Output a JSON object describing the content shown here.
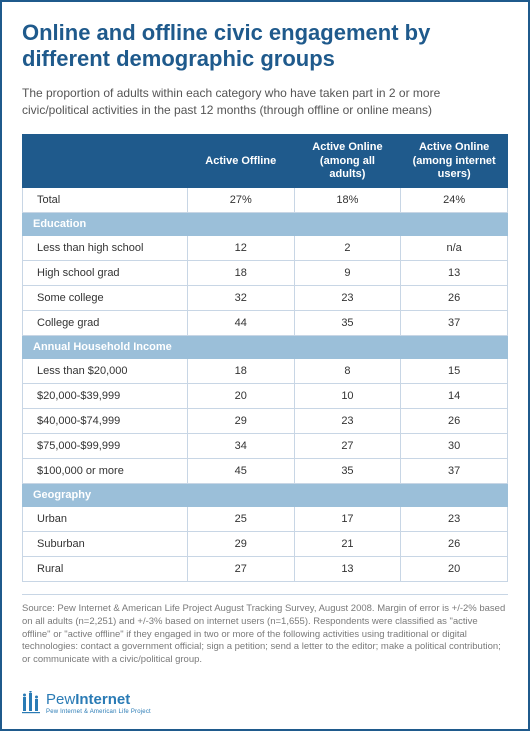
{
  "title": "Online and offline civic engagement by different demographic groups",
  "subtitle": "The proportion of adults within each category who have taken part in 2 or more civic/political activities in the past 12 months (through offline or online means)",
  "columns": [
    "",
    "Active Offline",
    "Active Online (among all adults)",
    "Active Online (among internet users)"
  ],
  "sections": [
    {
      "header": null,
      "rows": [
        {
          "label": "Total",
          "values": [
            "27%",
            "18%",
            "24%"
          ]
        }
      ]
    },
    {
      "header": "Education",
      "rows": [
        {
          "label": "Less than high school",
          "values": [
            "12",
            "2",
            "n/a"
          ]
        },
        {
          "label": "High school grad",
          "values": [
            "18",
            "9",
            "13"
          ]
        },
        {
          "label": "Some college",
          "values": [
            "32",
            "23",
            "26"
          ]
        },
        {
          "label": "College grad",
          "values": [
            "44",
            "35",
            "37"
          ]
        }
      ]
    },
    {
      "header": "Annual Household Income",
      "rows": [
        {
          "label": "Less than $20,000",
          "values": [
            "18",
            "8",
            "15"
          ]
        },
        {
          "label": "$20,000-$39,999",
          "values": [
            "20",
            "10",
            "14"
          ]
        },
        {
          "label": "$40,000-$74,999",
          "values": [
            "29",
            "23",
            "26"
          ]
        },
        {
          "label": "$75,000-$99,999",
          "values": [
            "34",
            "27",
            "30"
          ]
        },
        {
          "label": "$100,000 or more",
          "values": [
            "45",
            "35",
            "37"
          ]
        }
      ]
    },
    {
      "header": "Geography",
      "rows": [
        {
          "label": "Urban",
          "values": [
            "25",
            "17",
            "23"
          ]
        },
        {
          "label": "Suburban",
          "values": [
            "29",
            "21",
            "26"
          ]
        },
        {
          "label": "Rural",
          "values": [
            "27",
            "13",
            "20"
          ]
        }
      ]
    }
  ],
  "footnote": "Source: Pew Internet & American Life Project August Tracking Survey, August 2008. Margin of error is +/-2% based on all adults (n=2,251) and +/-3% based on internet users (n=1,655). Respondents were classified as \"active offline\" or \"active offline\" if they engaged in two or more of the following activities using traditional or digital technologies: contact a government official; sign a petition; send a letter to the editor; make a political contribution; or communicate with a civic/political group.",
  "logo": {
    "brand_prefix": "Pew",
    "brand_suffix": "Internet",
    "sub": "Pew Internet & American Life Project"
  },
  "colors": {
    "primary": "#1f5a8c",
    "section_bg": "#9bbfd9",
    "border": "#c8d6e5",
    "text": "#333333",
    "muted": "#7a7a7a",
    "logo": "#2a7bb5"
  },
  "table_style": {
    "header_fontsize": 11,
    "cell_fontsize": 11,
    "label_col_width_pct": 34,
    "data_col_width_pct": 22
  }
}
